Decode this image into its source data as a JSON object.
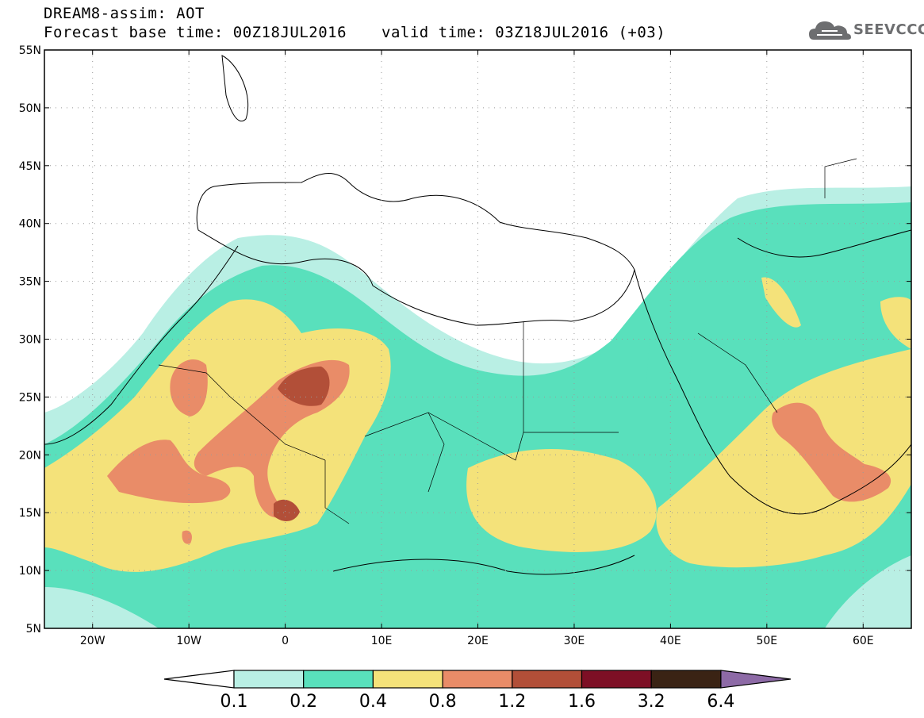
{
  "header": {
    "title_line1": "DREAM8-assim: AOT",
    "title_line2": "Forecast base time: 00Z18JUL2016",
    "valid_time": "valid time: 03Z18JUL2016 (+03)"
  },
  "logo": {
    "text": "SEEVCCC",
    "icon": "cloud-icon",
    "color": "#6d6e70"
  },
  "map": {
    "lat_labels": [
      "55N",
      "50N",
      "45N",
      "40N",
      "35N",
      "30N",
      "25N",
      "20N",
      "15N",
      "10N",
      "5N"
    ],
    "lon_labels": [
      "20W",
      "10W",
      "0",
      "10E",
      "20E",
      "30E",
      "40E",
      "50E",
      "60E"
    ],
    "lat_values": [
      55,
      50,
      45,
      40,
      35,
      30,
      25,
      20,
      15,
      10,
      5
    ],
    "lon_values": [
      -20,
      -10,
      0,
      10,
      20,
      30,
      40,
      50,
      60
    ],
    "extent": {
      "lon_min": -25,
      "lon_max": 65,
      "lat_min": 5,
      "lat_max": 55
    },
    "grid": "dotted"
  },
  "colorbar": {
    "labels": [
      "0.1",
      "0.2",
      "0.4",
      "0.8",
      "1.2",
      "1.6",
      "3.2",
      "6.4"
    ],
    "colors": [
      "#ffffff",
      "#b9efe4",
      "#59e0bc",
      "#f4e27a",
      "#e98c68",
      "#b24f38",
      "#7d0f25",
      "#3a2314",
      "#8d6aa6"
    ]
  }
}
